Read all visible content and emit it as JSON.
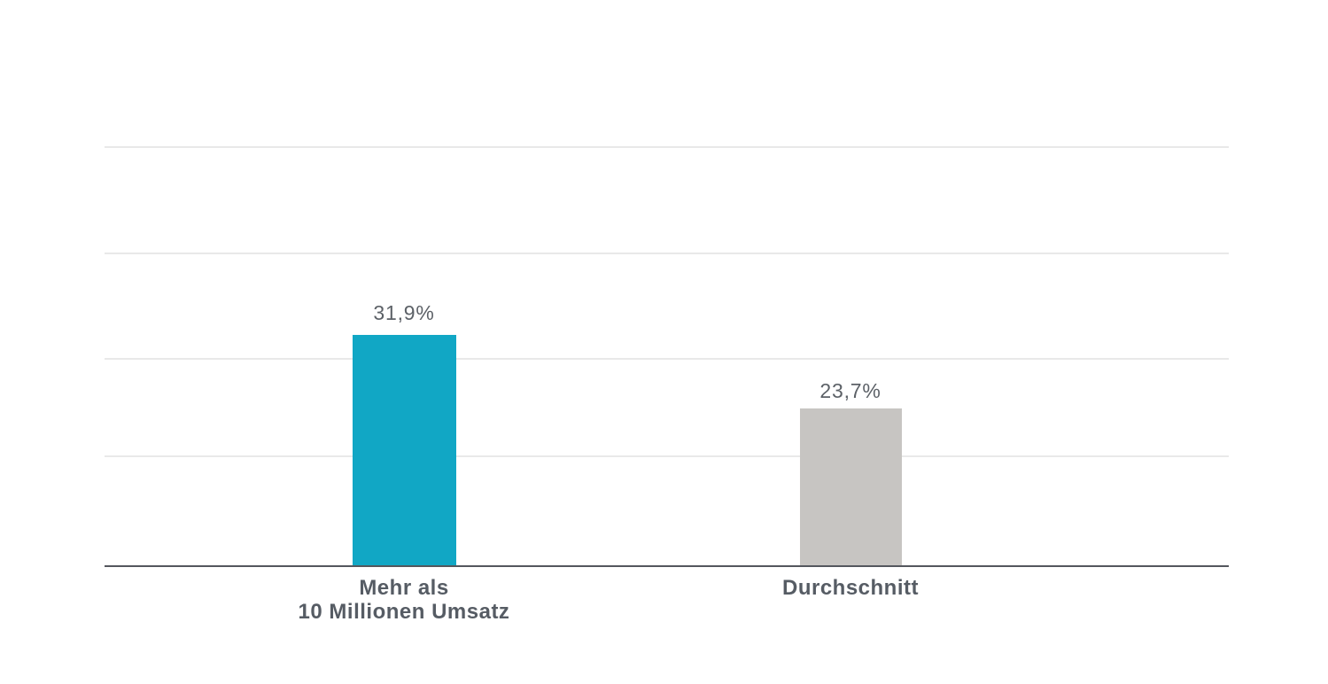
{
  "chart_data": {
    "type": "bar",
    "categories": [
      "Mehr als 10 Millionen Umsatz",
      "Durchschnitt"
    ],
    "values": [
      31.9,
      23.7
    ],
    "value_labels": [
      "31,9%",
      "23,7%"
    ],
    "category_lines": [
      [
        "Mehr als",
        "10 Millionen Umsatz"
      ],
      [
        "Durchschnitt"
      ]
    ],
    "unit": "%",
    "title": "",
    "xlabel": "",
    "ylabel": "",
    "legend": false,
    "grid": true,
    "gridline_count": 4,
    "bar_colors": [
      "#11a7c5",
      "#c7c5c2"
    ],
    "gridline_color": "#e9e9e9",
    "axis_color": "#54575d",
    "value_label_color": "#5c6167",
    "category_label_color": "#565c64",
    "background_color": "#ffffff"
  }
}
